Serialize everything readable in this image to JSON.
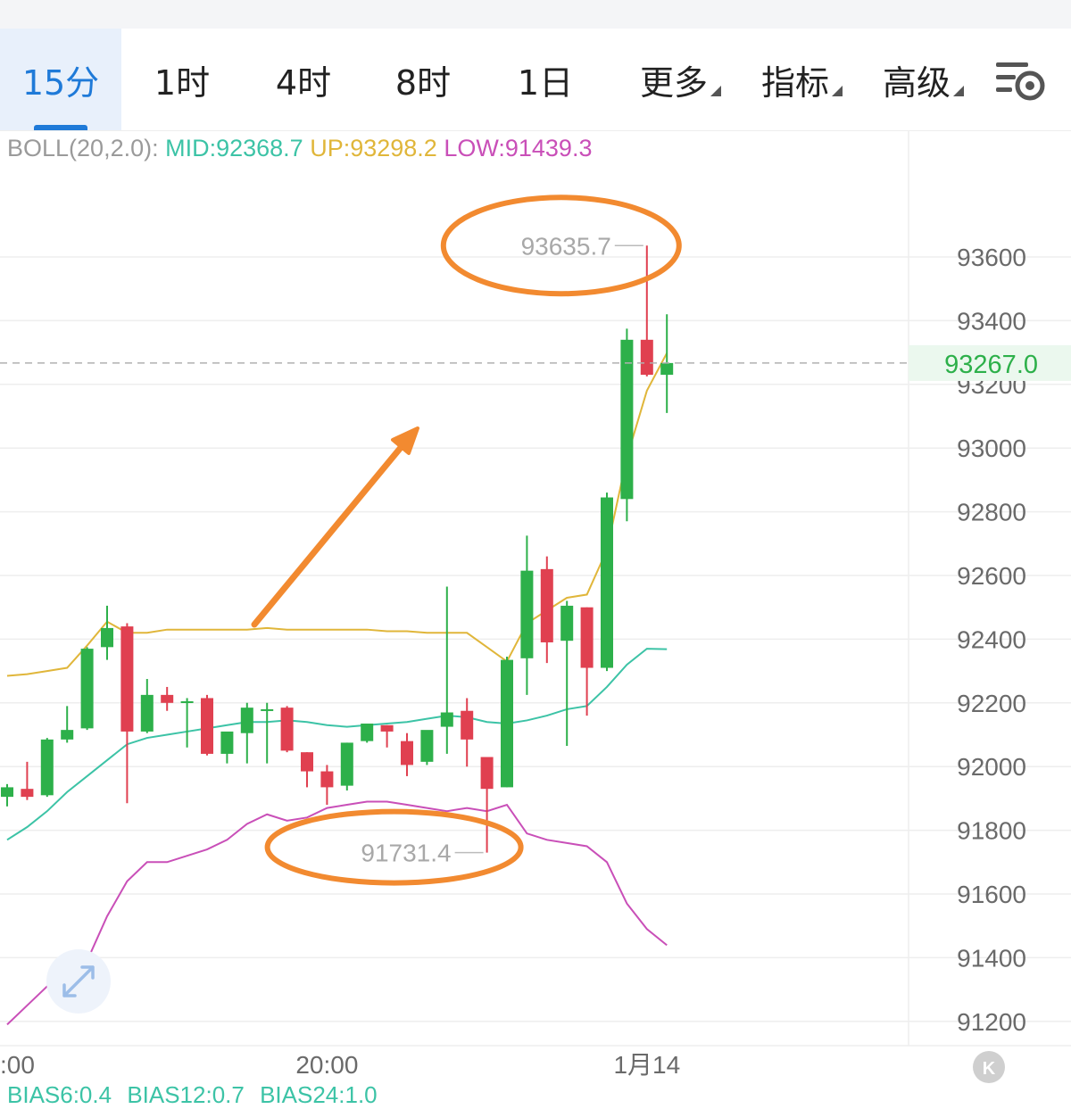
{
  "tabs": [
    {
      "label": "15分",
      "active": true
    },
    {
      "label": "1时"
    },
    {
      "label": "4时"
    },
    {
      "label": "8时"
    },
    {
      "label": "1日"
    },
    {
      "label": "更多",
      "dropdown": true
    },
    {
      "label": "指标",
      "dropdown": true
    },
    {
      "label": "高级",
      "dropdown": true
    }
  ],
  "settings_icon": "chart-settings-icon",
  "legend": {
    "name": "BOLL(20,2.0):",
    "mid": "MID:92368.7",
    "up": "UP:93298.2",
    "low": "LOW:91439.3"
  },
  "bottom_legend": [
    "BIAS6:0.4",
    "BIAS12:0.7",
    "BIAS24:1.0"
  ],
  "colors": {
    "up_candle": "#2db04a",
    "down_candle": "#e04050",
    "mid_line": "#3cc3a6",
    "upper_band": "#e0b63a",
    "lower_band": "#c94fb8",
    "annotation": "#f28a30",
    "current_price": "#2db04a",
    "active_tab": "#1f7ad8"
  },
  "chart_data": {
    "type": "candlestick",
    "y_ticks": [
      "93600",
      "93400",
      "93200",
      "93000",
      "92800",
      "92600",
      "92400",
      "92200",
      "92000",
      "91800",
      "91600",
      "91400",
      "91200"
    ],
    "ylim": [
      91100,
      93900
    ],
    "x_tick_labels": [
      ":00",
      "20:00",
      "1月14"
    ],
    "x_tick_index": [
      0,
      16,
      32
    ],
    "current_price": "93267.0",
    "current_price_value": 93267.0,
    "high_marker": {
      "label": "93635.7",
      "index": 32
    },
    "low_marker": {
      "label": "91731.4",
      "index": 24
    },
    "candles": [
      {
        "o": 91905,
        "h": 91945,
        "l": 91875,
        "c": 91935
      },
      {
        "o": 91930,
        "h": 92015,
        "l": 91895,
        "c": 91905
      },
      {
        "o": 91910,
        "h": 92090,
        "l": 91905,
        "c": 92085
      },
      {
        "o": 92085,
        "h": 92190,
        "l": 92075,
        "c": 92115
      },
      {
        "o": 92120,
        "h": 92375,
        "l": 92115,
        "c": 92370
      },
      {
        "o": 92375,
        "h": 92505,
        "l": 92335,
        "c": 92435
      },
      {
        "o": 92440,
        "h": 92450,
        "l": 91885,
        "c": 92110
      },
      {
        "o": 92110,
        "h": 92275,
        "l": 92105,
        "c": 92225
      },
      {
        "o": 92225,
        "h": 92250,
        "l": 92175,
        "c": 92200
      },
      {
        "o": 92205,
        "h": 92215,
        "l": 92060,
        "c": 92205
      },
      {
        "o": 92215,
        "h": 92225,
        "l": 92035,
        "c": 92040
      },
      {
        "o": 92040,
        "h": 92105,
        "l": 92010,
        "c": 92110
      },
      {
        "o": 92105,
        "h": 92200,
        "l": 92010,
        "c": 92185
      },
      {
        "o": 92180,
        "h": 92200,
        "l": 92010,
        "c": 92180
      },
      {
        "o": 92185,
        "h": 92190,
        "l": 92045,
        "c": 92050
      },
      {
        "o": 92045,
        "h": 92045,
        "l": 91935,
        "c": 91985
      },
      {
        "o": 91985,
        "h": 92005,
        "l": 91880,
        "c": 91935
      },
      {
        "o": 91940,
        "h": 92075,
        "l": 91925,
        "c": 92075
      },
      {
        "o": 92080,
        "h": 92130,
        "l": 92075,
        "c": 92135
      },
      {
        "o": 92130,
        "h": 92130,
        "l": 92060,
        "c": 92110
      },
      {
        "o": 92080,
        "h": 92105,
        "l": 91970,
        "c": 92005
      },
      {
        "o": 92015,
        "h": 92100,
        "l": 92005,
        "c": 92115
      },
      {
        "o": 92125,
        "h": 92565,
        "l": 92040,
        "c": 92170
      },
      {
        "o": 92175,
        "h": 92215,
        "l": 92000,
        "c": 92085
      },
      {
        "o": 92030,
        "h": 92030,
        "l": 91730,
        "c": 91930
      },
      {
        "o": 91935,
        "h": 92345,
        "l": 91935,
        "c": 92335
      },
      {
        "o": 92340,
        "h": 92725,
        "l": 92225,
        "c": 92615
      },
      {
        "o": 92620,
        "h": 92660,
        "l": 92325,
        "c": 92390
      },
      {
        "o": 92395,
        "h": 92520,
        "l": 92065,
        "c": 92505
      },
      {
        "o": 92500,
        "h": 92500,
        "l": 92160,
        "c": 92310
      },
      {
        "o": 92310,
        "h": 92860,
        "l": 92300,
        "c": 92845
      },
      {
        "o": 92840,
        "h": 93375,
        "l": 92770,
        "c": 93340
      },
      {
        "o": 93340,
        "h": 93635.7,
        "l": 93225,
        "c": 93230
      },
      {
        "o": 93230,
        "h": 93420,
        "l": 93110,
        "c": 93267
      }
    ],
    "bands": {
      "mid": [
        91770,
        91810,
        91860,
        91920,
        91970,
        92020,
        92070,
        92090,
        92100,
        92110,
        92120,
        92130,
        92140,
        92140,
        92145,
        92140,
        92130,
        92125,
        92130,
        92135,
        92140,
        92150,
        92160,
        92155,
        92140,
        92135,
        92145,
        92160,
        92180,
        92190,
        92250,
        92320,
        92370,
        92368.7
      ],
      "upper": [
        92285,
        92290,
        92300,
        92310,
        92380,
        92455,
        92420,
        92420,
        92430,
        92430,
        92430,
        92430,
        92430,
        92435,
        92430,
        92430,
        92430,
        92430,
        92430,
        92425,
        92425,
        92420,
        92420,
        92420,
        92375,
        92330,
        92450,
        92490,
        92530,
        92540,
        92680,
        92970,
        93180,
        93298.2
      ],
      "lower": [
        91190,
        91250,
        91310,
        91350,
        91390,
        91530,
        91640,
        91700,
        91700,
        91720,
        91740,
        91770,
        91820,
        91850,
        91830,
        91840,
        91870,
        91880,
        91890,
        91890,
        91880,
        91870,
        91860,
        91870,
        91860,
        91880,
        91790,
        91770,
        91760,
        91750,
        91700,
        91570,
        91490,
        91439.3
      ]
    }
  }
}
